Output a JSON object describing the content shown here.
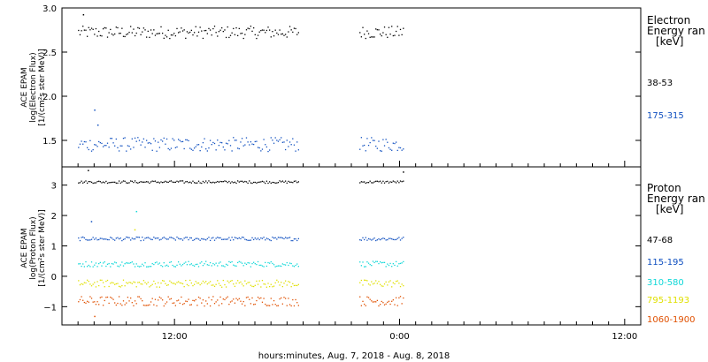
{
  "chart_data": [
    {
      "type": "scatter",
      "panel": "electron",
      "ylabel": [
        "ACE EPAM",
        "log(Electron Flux)",
        "[1/(cm²s ster MeV)]"
      ],
      "ylim": [
        1.2,
        3.0
      ],
      "yticks": [
        1.5,
        2.0,
        2.5,
        3.0
      ],
      "ytick_labels": [
        "1.5",
        "2.0",
        "2.5",
        "3.0"
      ],
      "xlim": [
        0,
        36
      ],
      "legend_title": [
        "Electron",
        "Energy ran",
        "[keV]"
      ],
      "gap": [
        14.7,
        18.5
      ],
      "series": [
        {
          "name": "38-53",
          "color": "#000000",
          "mean": 2.73,
          "spread": 0.07,
          "spikes": [
            [
              1.3,
              2.93
            ]
          ]
        },
        {
          "name": "175-315",
          "color": "#1050c0",
          "mean": 1.46,
          "spread": 0.08,
          "spikes": [
            [
              2.0,
              1.85
            ],
            [
              2.2,
              1.68
            ]
          ]
        }
      ]
    },
    {
      "type": "scatter",
      "panel": "proton",
      "ylabel": [
        "ACE EPAM",
        "log(Proton Flux)",
        "[1/(cm²s ster MeV)]"
      ],
      "ylim": [
        -1.6,
        3.6
      ],
      "yticks": [
        -1,
        0,
        1,
        2,
        3
      ],
      "ytick_labels": [
        "−1",
        "0",
        "1",
        "2",
        "3"
      ],
      "xlim": [
        0,
        36
      ],
      "legend_title": [
        "Proton",
        "Energy ran",
        "[keV]"
      ],
      "gap": [
        14.7,
        18.5
      ],
      "series": [
        {
          "name": "47-68",
          "color": "#000000",
          "mean": 3.12,
          "spread": 0.04,
          "spikes": [
            [
              1.6,
              3.5
            ],
            [
              21.2,
              3.45
            ]
          ]
        },
        {
          "name": "115-195",
          "color": "#1050c0",
          "mean": 1.25,
          "spread": 0.06,
          "spikes": [
            [
              1.8,
              1.82
            ]
          ]
        },
        {
          "name": "310-580",
          "color": "#10d8d8",
          "mean": 0.42,
          "spread": 0.09,
          "spikes": [
            [
              4.6,
              2.15
            ]
          ]
        },
        {
          "name": "795-1193",
          "color": "#e0e000",
          "mean": -0.22,
          "spread": 0.12,
          "spikes": [
            [
              4.5,
              1.55
            ]
          ]
        },
        {
          "name": "1060-1900",
          "color": "#e05000",
          "mean": -0.8,
          "spread": 0.16,
          "spikes": [
            [
              2.0,
              -1.3
            ]
          ]
        }
      ]
    }
  ],
  "x_axis": {
    "xlim": [
      0,
      36
    ],
    "ticks": [
      {
        "value": 7,
        "label": "12:00"
      },
      {
        "value": 21,
        "label": "0:00"
      },
      {
        "value": 35,
        "label": "12:00"
      }
    ],
    "xlabel": "hours:minutes, Aug.  7, 2018 - Aug.  8, 2018"
  }
}
